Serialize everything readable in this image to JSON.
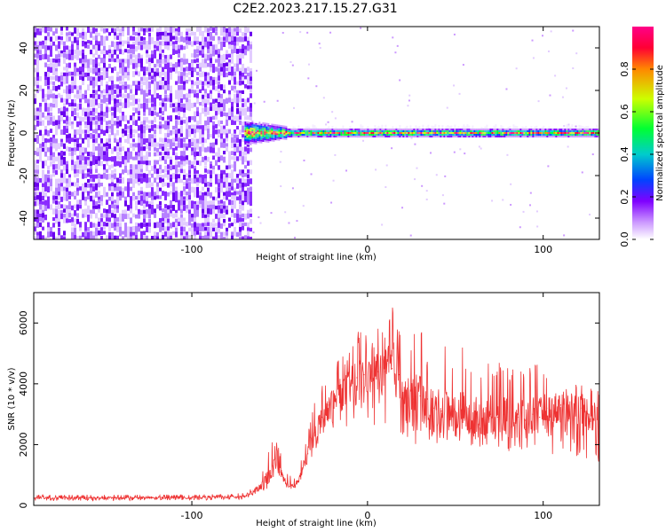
{
  "title": "C2E2.2023.217.15.27.G31",
  "chart_data": [
    {
      "type": "heatmap",
      "xlabel": "Height of straight line (km)",
      "ylabel": "Frequency (Hz)",
      "xlim": [
        -190,
        132
      ],
      "ylim": [
        -50,
        50
      ],
      "xticks": [
        -100,
        0,
        100
      ],
      "yticks": [
        -40,
        -20,
        0,
        20,
        40
      ],
      "xtick_labels": [
        "-100",
        "0",
        "100"
      ],
      "ytick_labels": [
        "-40",
        "-20",
        "0",
        "20",
        "40"
      ],
      "noise_region_x": [
        -190,
        -66
      ],
      "carrier_start_x": -70,
      "carrier_frequency": 0,
      "colorbar": {
        "label": "Normalized spectral amplitude",
        "range": [
          0,
          1
        ],
        "ticks": [
          0.0,
          0.2,
          0.4,
          0.6,
          0.8
        ],
        "tick_labels": [
          "0.0",
          "0.2",
          "0.4",
          "0.6",
          "0.8"
        ],
        "colors": [
          "#ffffff",
          "#cc99ff",
          "#7f00ff",
          "#0044ff",
          "#00cccc",
          "#00ff33",
          "#ccff00",
          "#ff8800",
          "#ff0033",
          "#ff0088"
        ]
      }
    },
    {
      "type": "line",
      "xlabel": "Height of straight line (km)",
      "ylabel": "SNR (10 * v/v)",
      "xlim": [
        -190,
        132
      ],
      "ylim": [
        0,
        7000
      ],
      "xticks": [
        -100,
        0,
        100
      ],
      "yticks": [
        0,
        2000,
        4000,
        6000
      ],
      "xtick_labels": [
        "-100",
        "0",
        "100"
      ],
      "ytick_labels": [
        "0",
        "2000",
        "4000",
        "6000"
      ],
      "color": "#ee3333",
      "x": [
        -190,
        -160,
        -130,
        -100,
        -80,
        -70,
        -64,
        -58,
        -54,
        -50,
        -46,
        -42,
        -38,
        -34,
        -30,
        -26,
        -22,
        -18,
        -14,
        -10,
        -6,
        -2,
        2,
        6,
        10,
        14,
        18,
        22,
        26,
        30,
        34,
        38,
        42,
        46,
        50,
        54,
        58,
        62,
        66,
        70,
        74,
        78,
        82,
        86,
        90,
        94,
        98,
        102,
        106,
        110,
        114,
        118,
        122,
        126,
        132
      ],
      "y": [
        250,
        250,
        250,
        260,
        280,
        300,
        500,
        800,
        1300,
        1100,
        700,
        600,
        1000,
        1700,
        2400,
        2900,
        3300,
        3500,
        3700,
        3900,
        4200,
        4300,
        4200,
        4400,
        4400,
        4500,
        4300,
        3400,
        3500,
        3600,
        3500,
        3200,
        3100,
        3300,
        3000,
        3100,
        2800,
        3000,
        2900,
        3000,
        2900,
        3000,
        2700,
        2900,
        2800,
        3000,
        2900,
        3200,
        3100,
        3300,
        3300,
        3200,
        3200,
        3000,
        2800
      ],
      "y_band": [
        150,
        150,
        160,
        170,
        180,
        200,
        350,
        500,
        700,
        800,
        700,
        500,
        800,
        1300,
        1800,
        2200,
        2300,
        2400,
        2300,
        2600,
        2800,
        2900,
        2700,
        2400,
        2600,
        2500,
        2300,
        2000,
        1800,
        2000,
        1900,
        2000,
        2000,
        2100,
        2000,
        2000,
        1900,
        2000,
        1800,
        1900,
        1800,
        1900,
        1700,
        1800,
        1800,
        1900,
        1800,
        1600,
        1700,
        1700,
        1700,
        1600,
        1600,
        1500,
        1400
      ],
      "y_upper": [
        350,
        350,
        350,
        360,
        380,
        420,
        700,
        1500,
        2400,
        1800,
        1200,
        900,
        1500,
        2500,
        3400,
        3900,
        4500,
        4700,
        4900,
        5200,
        5700,
        5900,
        5300,
        5900,
        6000,
        6900,
        5800,
        5200,
        5600,
        6100,
        5000,
        4600,
        5300,
        5200,
        4900,
        5200,
        4600,
        4700,
        4500,
        4800,
        4700,
        5100,
        4500,
        4700,
        4400,
        4900,
        4600,
        4400,
        4300,
        4300,
        4200,
        4100,
        4000,
        4100,
        3800
      ]
    }
  ]
}
